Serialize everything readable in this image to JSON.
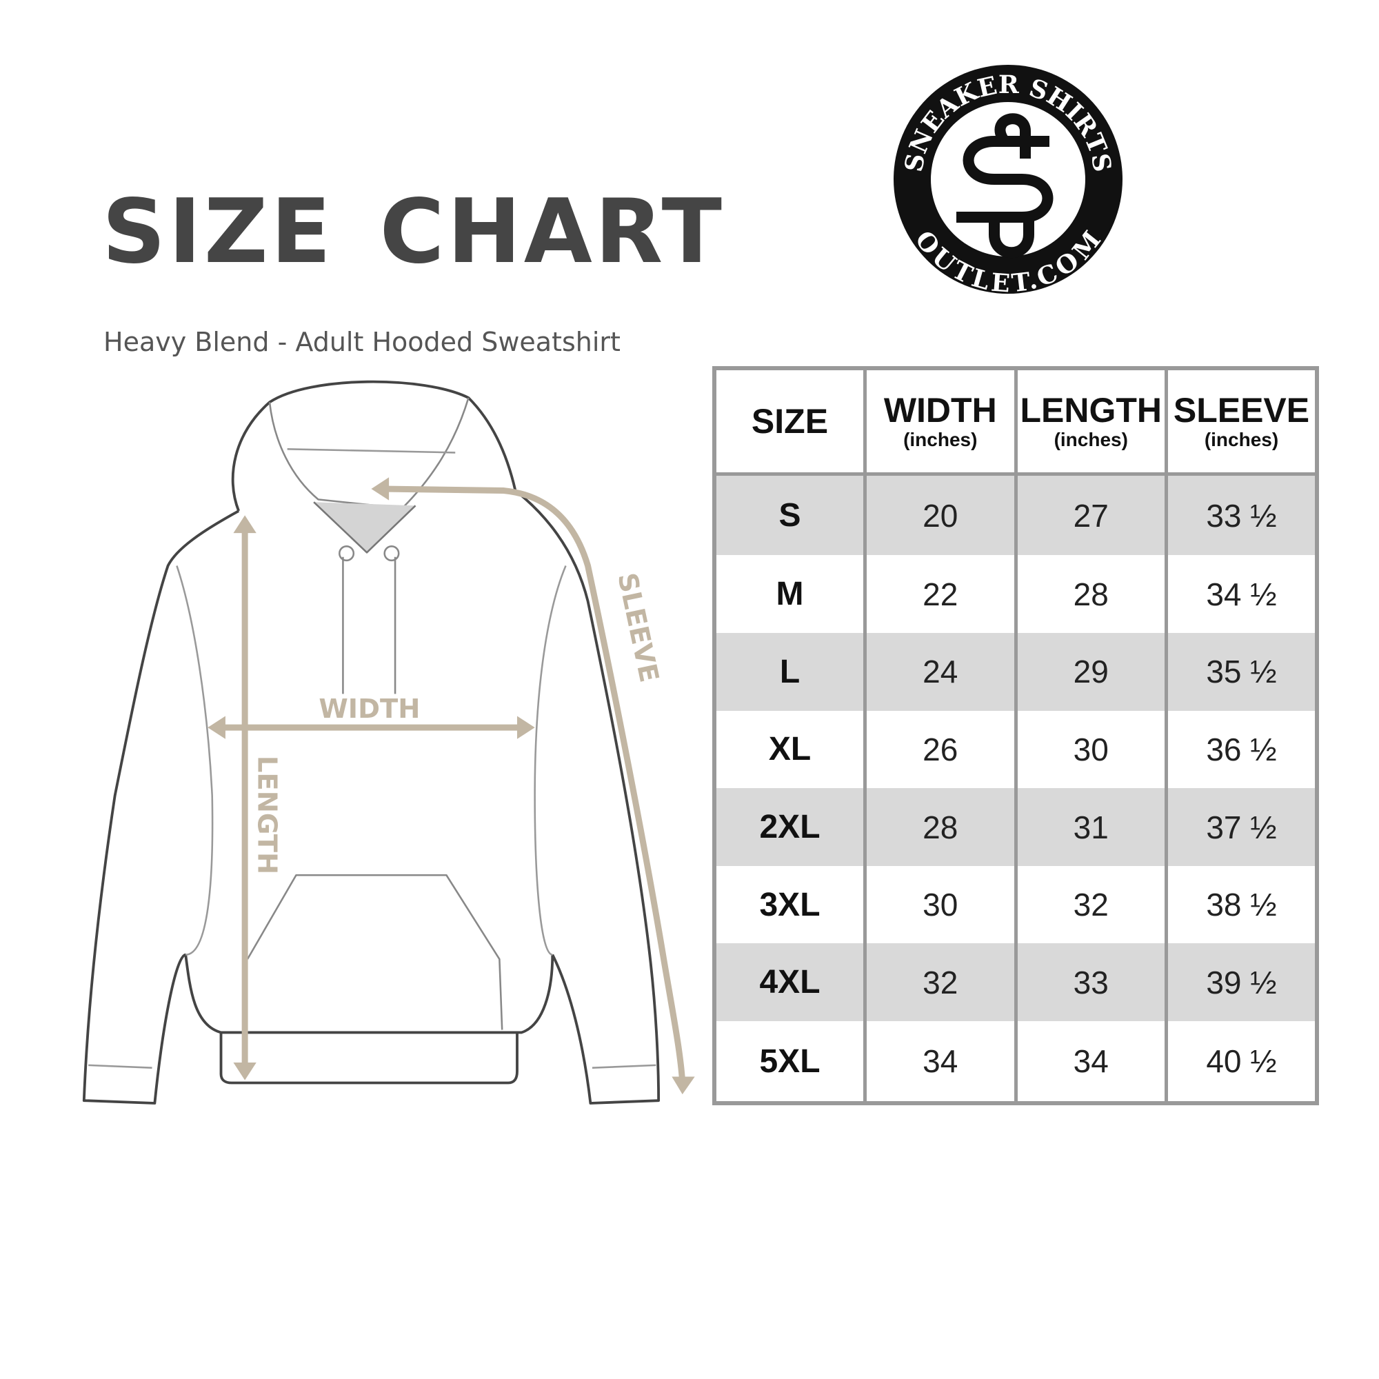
{
  "header": {
    "title": "SIZE CHART",
    "subtitle": "Heavy Blend - Adult Hooded Sweatshirt"
  },
  "logo": {
    "top_text": "SNEAKER SHIRTS",
    "bottom_text": "OUTLET.COM",
    "monogram": "SS"
  },
  "diagram": {
    "labels": {
      "width": "WIDTH",
      "length": "LENGTH",
      "sleeve": "SLEEVE"
    },
    "arrow_color": "#c2b6a3",
    "outline_color": "#444444"
  },
  "table": {
    "columns": [
      {
        "label": "SIZE",
        "unit": ""
      },
      {
        "label": "WIDTH",
        "unit": "(inches)"
      },
      {
        "label": "LENGTH",
        "unit": "(inches)"
      },
      {
        "label": "SLEEVE",
        "unit": "(inches)"
      }
    ],
    "rows": [
      [
        "S",
        "20",
        "27",
        "33 ½"
      ],
      [
        "M",
        "22",
        "28",
        "34 ½"
      ],
      [
        "L",
        "24",
        "29",
        "35 ½"
      ],
      [
        "XL",
        "26",
        "30",
        "36 ½"
      ],
      [
        "2XL",
        "28",
        "31",
        "37 ½"
      ],
      [
        "3XL",
        "30",
        "32",
        "38 ½"
      ],
      [
        "4XL",
        "32",
        "33",
        "39 ½"
      ],
      [
        "5XL",
        "34",
        "34",
        "40 ½"
      ]
    ],
    "shade_color": "#d9d9d9",
    "border_color": "#999999"
  }
}
